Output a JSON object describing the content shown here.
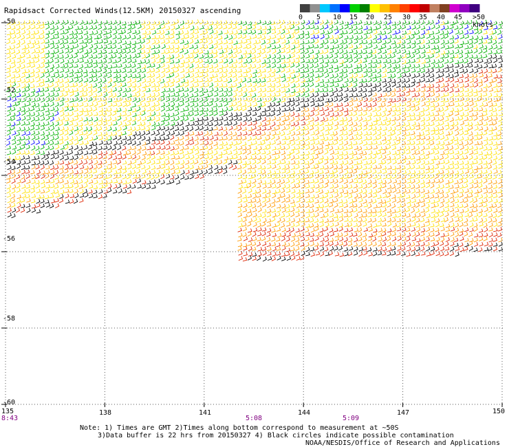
{
  "title": "Rapidsact Corrected Winds(12.5KM) 20150327 ascending",
  "legend": {
    "labels": [
      "0",
      "5",
      "10",
      "15",
      "20",
      "25",
      "30",
      "35",
      "40",
      "45",
      ">50 knots"
    ],
    "colors": [
      "#404040",
      "#909090",
      "#00c8ff",
      "#0070ff",
      "#0000ff",
      "#00d000",
      "#008000",
      "#ffff00",
      "#ffc000",
      "#ff8000",
      "#ff4000",
      "#ff0000",
      "#c00000",
      "#c08060",
      "#804020",
      "#d000d0",
      "#9000c0",
      "#400080"
    ]
  },
  "lat_labels": [
    "-50",
    "-52",
    "-54",
    "-56",
    "-58",
    "-60"
  ],
  "lon_labels": [
    "135",
    "138",
    "141",
    "144",
    "147",
    "150"
  ],
  "times": [
    "8:43",
    "5:08",
    "5:09"
  ],
  "time_color": "#800080",
  "notes": [
    "Note: 1) Times are GMT 2)Times along bottom correspond to measurement at ~50S",
    "3)Data buffer is 22 hrs from 20150327 4) Black circles indicate possible contamination",
    "NOAA/NESDIS/Office of Research and Applications"
  ],
  "map": {
    "lat_range": [
      -60,
      -50
    ],
    "lon_range": [
      135,
      150
    ],
    "grid": "dotted",
    "wind_colors": {
      "green": "#00b000",
      "yellow": "#ffe000",
      "orange": "#ff9900",
      "red": "#dd2200",
      "black": "#000000",
      "blue": "#0000ff"
    }
  }
}
